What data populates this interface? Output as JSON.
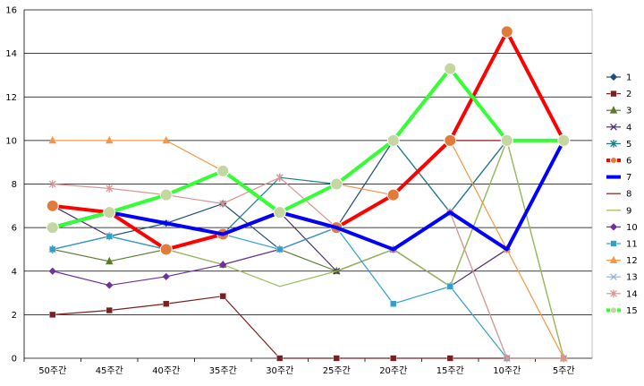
{
  "chart_data": {
    "type": "line",
    "title": "",
    "xlabel": "",
    "ylabel": "",
    "ylim": [
      0,
      16
    ],
    "yticks": [
      0,
      2,
      4,
      6,
      8,
      10,
      12,
      14,
      16
    ],
    "categories": [
      "50주간",
      "45주간",
      "40주간",
      "35주간",
      "30주간",
      "25주간",
      "20주간",
      "15주간",
      "10주간",
      "5주간"
    ],
    "grid": "horizontal",
    "legend_position": "right",
    "series": [
      {
        "name": "1",
        "color": "#1F4E79",
        "marker": "diamond",
        "width": 1.2,
        "values": [
          5,
          5.6,
          6.2,
          7.1,
          5,
          6,
          10,
          6.7,
          10,
          10
        ]
      },
      {
        "name": "2",
        "color": "#7B2020",
        "marker": "square",
        "width": 1.2,
        "values": [
          2,
          2.2,
          2.5,
          2.85,
          0,
          0,
          0,
          0,
          0,
          0
        ]
      },
      {
        "name": "3",
        "color": "#5A7A2A",
        "marker": "triangle",
        "width": 1.2,
        "values": [
          5,
          4.45,
          5,
          4.3,
          5,
          4,
          5,
          3.3,
          10,
          0
        ]
      },
      {
        "name": "4",
        "color": "#4B2D6E",
        "marker": "x",
        "width": 1.2,
        "values": [
          7,
          5.6,
          5,
          5.7,
          6.7,
          4,
          5,
          3.3,
          5,
          10
        ]
      },
      {
        "name": "5",
        "color": "#1F7A8C",
        "marker": "star",
        "width": 1.2,
        "values": [
          5,
          5.6,
          5,
          5.7,
          8.3,
          8,
          10,
          6.7,
          10,
          10
        ]
      },
      {
        "name": "6",
        "color": "#FF0000",
        "marker": "circle",
        "width": 4,
        "values": [
          7,
          6.7,
          5,
          5.7,
          6.7,
          6,
          7.5,
          10,
          15,
          10
        ]
      },
      {
        "name": "7",
        "color": "#0000FF",
        "marker": "none",
        "width": 4,
        "values": [
          6,
          6.7,
          6.2,
          5.7,
          6.7,
          6,
          5,
          6.7,
          5,
          10
        ]
      },
      {
        "name": "8",
        "color": "#8B1A1A",
        "marker": "none",
        "width": 1.2,
        "values": [
          null,
          null,
          null,
          null,
          null,
          null,
          7.5,
          10,
          10,
          10
        ]
      },
      {
        "name": "9",
        "color": "#9BBB59",
        "marker": "none",
        "width": 1.2,
        "values": [
          6,
          6.7,
          5,
          4.3,
          3.3,
          4,
          5,
          3.3,
          10,
          0
        ]
      },
      {
        "name": "10",
        "color": "#7030A0",
        "marker": "diamond",
        "width": 1.2,
        "values": [
          4,
          3.35,
          3.75,
          4.3,
          5,
          6,
          5,
          6.7,
          5,
          10
        ]
      },
      {
        "name": "11",
        "color": "#31A0C8",
        "marker": "square",
        "width": 1.2,
        "values": [
          5,
          5.6,
          5,
          5.7,
          5,
          6,
          2.5,
          3.3,
          0,
          0
        ]
      },
      {
        "name": "12",
        "color": "#F79646",
        "marker": "triangle",
        "width": 1.2,
        "values": [
          10,
          10,
          10,
          8.6,
          6.7,
          8,
          7.5,
          10,
          5,
          0
        ]
      },
      {
        "name": "13",
        "color": "#95B3D7",
        "marker": "x",
        "width": 1.2,
        "values": [
          6,
          6.7,
          6.2,
          5.7,
          6.7,
          6,
          5,
          6.7,
          0,
          0
        ]
      },
      {
        "name": "14",
        "color": "#D99694",
        "marker": "star",
        "width": 1.2,
        "values": [
          8,
          7.8,
          7.5,
          7.1,
          8.3,
          6,
          5,
          6.7,
          0,
          0
        ]
      },
      {
        "name": "15",
        "color": "#33FF33",
        "marker": "circle",
        "width": 4,
        "values": [
          6,
          6.7,
          7.5,
          8.6,
          6.7,
          8,
          10,
          13.3,
          10,
          10
        ]
      }
    ]
  }
}
